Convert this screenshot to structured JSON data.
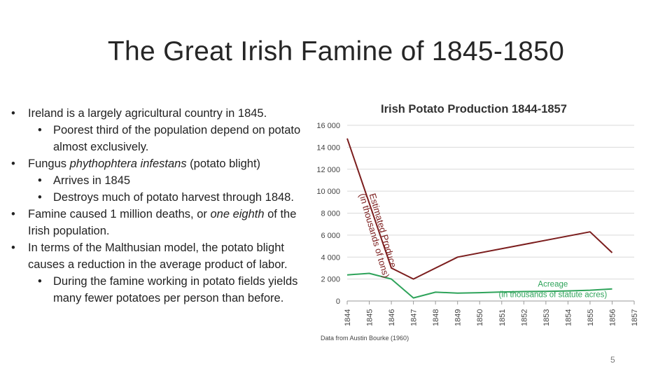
{
  "slide": {
    "title": "The Great Irish Famine of 1845-1850",
    "page_number": "5"
  },
  "bullets": [
    {
      "level": 1,
      "segments": [
        {
          "text": "Ireland is a largely agricultural country in 1845."
        }
      ]
    },
    {
      "level": 2,
      "segments": [
        {
          "text": "Poorest third of the population depend on potato almost exclusively."
        }
      ]
    },
    {
      "level": 1,
      "segments": [
        {
          "text": "Fungus "
        },
        {
          "text": "phythophtera infestans",
          "italic": true
        },
        {
          "text": " (potato blight)"
        }
      ]
    },
    {
      "level": 2,
      "segments": [
        {
          "text": "Arrives in 1845"
        }
      ]
    },
    {
      "level": 2,
      "segments": [
        {
          "text": "Destroys much of potato harvest through 1848."
        }
      ]
    },
    {
      "level": 1,
      "segments": [
        {
          "text": "Famine caused 1 million deaths, or "
        },
        {
          "text": "one eighth",
          "italic": true
        },
        {
          "text": " of the Irish population."
        }
      ]
    },
    {
      "level": 1,
      "segments": [
        {
          "text": "In terms of the Malthusian model, the potato blight causes a reduction in the average product of labor."
        }
      ]
    },
    {
      "level": 2,
      "segments": [
        {
          "text": "During the famine working in potato fields yields many fewer potatoes per person than before."
        }
      ]
    }
  ],
  "bullet_glyph": "•",
  "chart_data": {
    "type": "line",
    "title": "Irish Potato Production 1844-1857",
    "source": "Data from Austin Bourke (1960)",
    "x": [
      1844,
      1845,
      1846,
      1847,
      1848,
      1849,
      1850,
      1851,
      1852,
      1853,
      1854,
      1855,
      1856,
      1857
    ],
    "x_tick_labels": [
      "1844",
      "1845",
      "1846",
      "1847",
      "1848",
      "1849",
      "1850",
      "1851",
      "1852",
      "1853",
      "1854",
      "1855",
      "1856",
      "1857"
    ],
    "ylim": [
      0,
      16000
    ],
    "y_ticks": [
      0,
      2000,
      4000,
      6000,
      8000,
      10000,
      12000,
      14000,
      16000
    ],
    "y_tick_labels": [
      "0",
      "2 000",
      "4 000",
      "6 000",
      "8 000",
      "10 000",
      "12 000",
      "14 000",
      "16 000"
    ],
    "grid": true,
    "series": [
      {
        "name": "Estimated Produce",
        "label_lines": [
          "Estimated Produce",
          "(in thousands of tons)"
        ],
        "color": "#7b1d1d",
        "points": [
          [
            1844,
            14800
          ],
          [
            1846,
            3000
          ],
          [
            1847,
            2000
          ],
          [
            1849,
            4000
          ],
          [
            1855,
            6300
          ],
          [
            1856,
            4400
          ]
        ]
      },
      {
        "name": "Acreage",
        "label_lines": [
          "Acreage",
          "(in thousands of statute acres)"
        ],
        "color": "#2ea35a",
        "points": [
          [
            1844,
            2380
          ],
          [
            1845,
            2520
          ],
          [
            1846,
            2000
          ],
          [
            1847,
            280
          ],
          [
            1848,
            800
          ],
          [
            1849,
            720
          ],
          [
            1850,
            760
          ],
          [
            1851,
            820
          ],
          [
            1852,
            860
          ],
          [
            1853,
            880
          ],
          [
            1854,
            920
          ],
          [
            1855,
            980
          ],
          [
            1856,
            1100
          ]
        ]
      }
    ]
  }
}
